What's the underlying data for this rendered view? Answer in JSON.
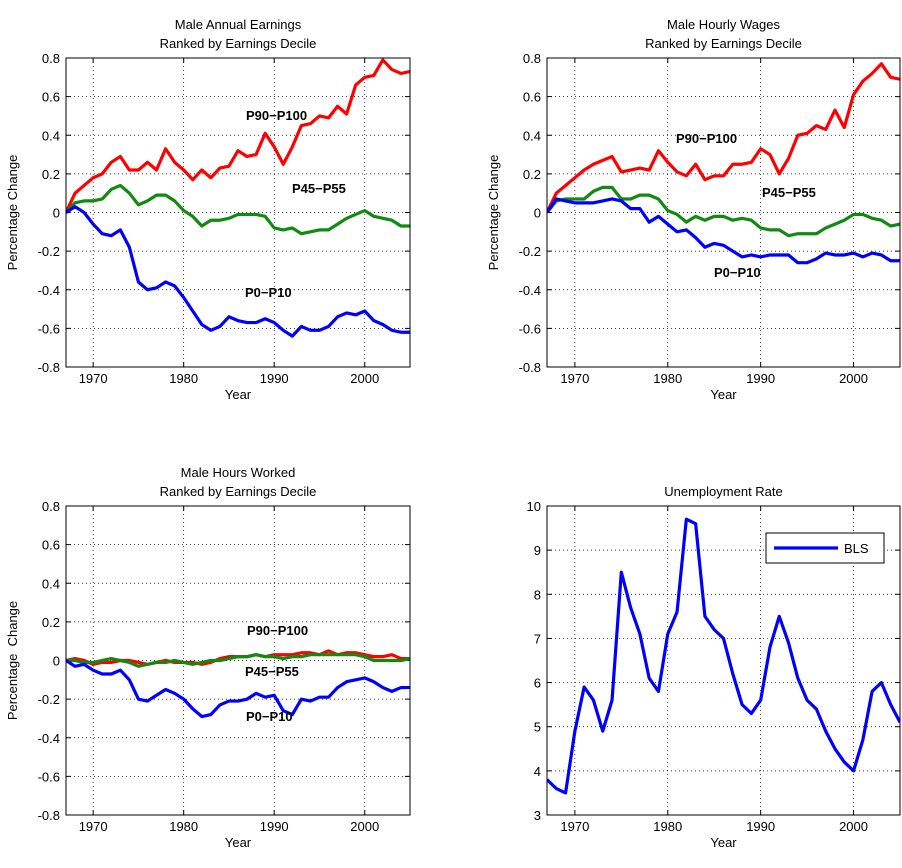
{
  "chart_data": [
    {
      "type": "line",
      "title": "Male Annual Earnings",
      "subtitle": "Ranked by Earnings Decile",
      "x_label": "Year",
      "y_label": "Percentage Change",
      "x": [
        1967,
        1968,
        1969,
        1970,
        1971,
        1972,
        1973,
        1974,
        1975,
        1976,
        1977,
        1978,
        1979,
        1980,
        1981,
        1982,
        1983,
        1984,
        1985,
        1986,
        1987,
        1988,
        1989,
        1990,
        1991,
        1992,
        1993,
        1994,
        1995,
        1996,
        1997,
        1998,
        1999,
        2000,
        2001,
        2002,
        2003,
        2004,
        2005
      ],
      "xlim": [
        1967,
        2005
      ],
      "xticks": [
        1970,
        1980,
        1990,
        2000
      ],
      "ylim": [
        -0.8,
        0.8
      ],
      "yticks": [
        -0.8,
        -0.6,
        -0.4,
        -0.2,
        0,
        0.2,
        0.4,
        0.6,
        0.8
      ],
      "grid": true,
      "series": [
        {
          "name": "P90−P100",
          "color": "#ff0000",
          "values": [
            0,
            0.1,
            0.14,
            0.18,
            0.2,
            0.26,
            0.29,
            0.22,
            0.22,
            0.26,
            0.22,
            0.33,
            0.26,
            0.22,
            0.17,
            0.22,
            0.18,
            0.23,
            0.24,
            0.32,
            0.29,
            0.3,
            0.41,
            0.34,
            0.25,
            0.34,
            0.45,
            0.46,
            0.5,
            0.49,
            0.55,
            0.51,
            0.66,
            0.7,
            0.71,
            0.79,
            0.74,
            0.72,
            0.73
          ]
        },
        {
          "name": "P45−P55",
          "color": "#128a12",
          "values": [
            0,
            0.05,
            0.06,
            0.06,
            0.07,
            0.12,
            0.14,
            0.1,
            0.04,
            0.06,
            0.09,
            0.09,
            0.06,
            0.01,
            -0.02,
            -0.07,
            -0.04,
            -0.04,
            -0.03,
            -0.01,
            -0.01,
            -0.01,
            -0.02,
            -0.08,
            -0.09,
            -0.08,
            -0.11,
            -0.1,
            -0.09,
            -0.09,
            -0.06,
            -0.03,
            -0.01,
            0.01,
            -0.02,
            -0.03,
            -0.04,
            -0.07,
            -0.07
          ]
        },
        {
          "name": "P0−P10",
          "color": "#0000ff",
          "values": [
            0,
            0.03,
            0,
            -0.06,
            -0.11,
            -0.12,
            -0.09,
            -0.18,
            -0.36,
            -0.4,
            -0.39,
            -0.36,
            -0.38,
            -0.44,
            -0.51,
            -0.58,
            -0.61,
            -0.59,
            -0.54,
            -0.56,
            -0.57,
            -0.57,
            -0.55,
            -0.57,
            -0.61,
            -0.64,
            -0.59,
            -0.61,
            -0.61,
            -0.59,
            -0.54,
            -0.52,
            -0.53,
            -0.51,
            -0.56,
            -0.58,
            -0.61,
            -0.62,
            -0.62
          ]
        }
      ]
    },
    {
      "type": "line",
      "title": "Male Hourly Wages",
      "subtitle": "Ranked by Earnings Decile",
      "x_label": "Year",
      "y_label": "Percentage Change",
      "x": [
        1967,
        1968,
        1969,
        1970,
        1971,
        1972,
        1973,
        1974,
        1975,
        1976,
        1977,
        1978,
        1979,
        1980,
        1981,
        1982,
        1983,
        1984,
        1985,
        1986,
        1987,
        1988,
        1989,
        1990,
        1991,
        1992,
        1993,
        1994,
        1995,
        1996,
        1997,
        1998,
        1999,
        2000,
        2001,
        2002,
        2003,
        2004,
        2005
      ],
      "xlim": [
        1967,
        2005
      ],
      "xticks": [
        1970,
        1980,
        1990,
        2000
      ],
      "ylim": [
        -0.8,
        0.8
      ],
      "yticks": [
        -0.8,
        -0.6,
        -0.4,
        -0.2,
        0,
        0.2,
        0.4,
        0.6,
        0.8
      ],
      "grid": true,
      "series": [
        {
          "name": "P90−P100",
          "color": "#ff0000",
          "values": [
            0,
            0.1,
            0.14,
            0.18,
            0.22,
            0.25,
            0.27,
            0.29,
            0.21,
            0.22,
            0.23,
            0.22,
            0.32,
            0.26,
            0.21,
            0.19,
            0.25,
            0.17,
            0.19,
            0.19,
            0.25,
            0.25,
            0.26,
            0.33,
            0.3,
            0.2,
            0.28,
            0.4,
            0.41,
            0.45,
            0.43,
            0.53,
            0.44,
            0.61,
            0.68,
            0.72,
            0.77,
            0.7,
            0.69
          ]
        },
        {
          "name": "P45−P55",
          "color": "#128a12",
          "values": [
            0,
            0.06,
            0.07,
            0.07,
            0.07,
            0.11,
            0.13,
            0.13,
            0.07,
            0.07,
            0.09,
            0.09,
            0.07,
            0.01,
            -0.01,
            -0.05,
            -0.02,
            -0.04,
            -0.02,
            -0.02,
            -0.04,
            -0.03,
            -0.04,
            -0.08,
            -0.09,
            -0.09,
            -0.12,
            -0.11,
            -0.11,
            -0.11,
            -0.08,
            -0.06,
            -0.04,
            -0.01,
            -0.01,
            -0.03,
            -0.04,
            -0.07,
            -0.06
          ]
        },
        {
          "name": "P0−P10",
          "color": "#0000ff",
          "values": [
            0,
            0.07,
            0.06,
            0.05,
            0.05,
            0.05,
            0.06,
            0.07,
            0.06,
            0.02,
            0.02,
            -0.05,
            -0.02,
            -0.06,
            -0.1,
            -0.09,
            -0.13,
            -0.18,
            -0.16,
            -0.17,
            -0.2,
            -0.23,
            -0.22,
            -0.23,
            -0.22,
            -0.22,
            -0.22,
            -0.26,
            -0.26,
            -0.24,
            -0.21,
            -0.22,
            -0.22,
            -0.21,
            -0.23,
            -0.21,
            -0.22,
            -0.25,
            -0.25
          ]
        }
      ]
    },
    {
      "type": "line",
      "title": "Male Hours Worked",
      "subtitle": "Ranked by Earnings Decile",
      "x_label": "Year",
      "y_label": "Percentage  Change",
      "x": [
        1967,
        1968,
        1969,
        1970,
        1971,
        1972,
        1973,
        1974,
        1975,
        1976,
        1977,
        1978,
        1979,
        1980,
        1981,
        1982,
        1983,
        1984,
        1985,
        1986,
        1987,
        1988,
        1989,
        1990,
        1991,
        1992,
        1993,
        1994,
        1995,
        1996,
        1997,
        1998,
        1999,
        2000,
        2001,
        2002,
        2003,
        2004,
        2005
      ],
      "xlim": [
        1967,
        2005
      ],
      "xticks": [
        1970,
        1980,
        1990,
        2000
      ],
      "ylim": [
        -0.8,
        0.8
      ],
      "yticks": [
        -0.8,
        -0.6,
        -0.4,
        -0.2,
        0,
        0.2,
        0.4,
        0.6,
        0.8
      ],
      "grid": true,
      "series": [
        {
          "name": "P90−P100",
          "color": "#ff0000",
          "values": [
            0,
            0.01,
            0,
            -0.02,
            -0.01,
            -0.01,
            0,
            0,
            -0.01,
            -0.02,
            -0.01,
            0,
            -0.01,
            -0.01,
            -0.01,
            -0.02,
            -0.01,
            0.01,
            0.02,
            0.02,
            0.02,
            0.03,
            0.02,
            0.03,
            0.03,
            0.03,
            0.04,
            0.04,
            0.03,
            0.05,
            0.03,
            0.04,
            0.04,
            0.03,
            0.02,
            0.02,
            0.03,
            0.01,
            0.01
          ]
        },
        {
          "name": "P45−P55",
          "color": "#128a12",
          "values": [
            0,
            0,
            -0.01,
            -0.01,
            0,
            0.01,
            0,
            -0.01,
            -0.03,
            -0.02,
            -0.01,
            -0.01,
            0,
            -0.01,
            -0.02,
            -0.01,
            0,
            0,
            0.01,
            0.02,
            0.02,
            0.03,
            0.02,
            0.02,
            0.01,
            0.02,
            0.02,
            0.03,
            0.03,
            0.03,
            0.03,
            0.03,
            0.03,
            0.02,
            0,
            0,
            0,
            0,
            0.01
          ]
        },
        {
          "name": "P0−P10",
          "color": "#0000ff",
          "values": [
            0,
            -0.03,
            -0.02,
            -0.05,
            -0.07,
            -0.07,
            -0.05,
            -0.1,
            -0.2,
            -0.21,
            -0.18,
            -0.15,
            -0.17,
            -0.2,
            -0.25,
            -0.29,
            -0.28,
            -0.23,
            -0.21,
            -0.21,
            -0.2,
            -0.17,
            -0.19,
            -0.18,
            -0.26,
            -0.28,
            -0.2,
            -0.21,
            -0.19,
            -0.19,
            -0.14,
            -0.11,
            -0.1,
            -0.09,
            -0.11,
            -0.14,
            -0.16,
            -0.14,
            -0.14
          ]
        }
      ]
    },
    {
      "type": "line",
      "title": "Unemployment Rate",
      "x_label": "Year",
      "x": [
        1967,
        1968,
        1969,
        1970,
        1971,
        1972,
        1973,
        1974,
        1975,
        1976,
        1977,
        1978,
        1979,
        1980,
        1981,
        1982,
        1983,
        1984,
        1985,
        1986,
        1987,
        1988,
        1989,
        1990,
        1991,
        1992,
        1993,
        1994,
        1995,
        1996,
        1997,
        1998,
        1999,
        2000,
        2001,
        2002,
        2003,
        2004,
        2005
      ],
      "xlim": [
        1967,
        2005
      ],
      "xticks": [
        1970,
        1980,
        1990,
        2000
      ],
      "ylim": [
        3,
        10
      ],
      "yticks": [
        3,
        4,
        5,
        6,
        7,
        8,
        9,
        10
      ],
      "grid": true,
      "legend": "upper right",
      "series": [
        {
          "name": "BLS",
          "color": "#0000ff",
          "values": [
            3.8,
            3.6,
            3.5,
            4.9,
            5.9,
            5.6,
            4.9,
            5.6,
            8.5,
            7.7,
            7.1,
            6.1,
            5.8,
            7.1,
            7.6,
            9.7,
            9.6,
            7.5,
            7.2,
            7.0,
            6.2,
            5.5,
            5.3,
            5.6,
            6.8,
            7.5,
            6.9,
            6.1,
            5.6,
            5.4,
            4.9,
            4.5,
            4.2,
            4.0,
            4.7,
            5.8,
            6.0,
            5.5,
            5.1
          ]
        }
      ]
    }
  ]
}
